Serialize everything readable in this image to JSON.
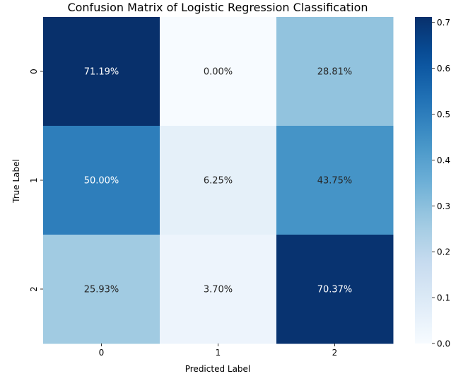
{
  "chart_data": {
    "type": "heatmap",
    "title": "Confusion Matrix of Logistic Regression Classification",
    "xlabel": "Predicted Label",
    "ylabel": "True Label",
    "x_categories": [
      "0",
      "1",
      "2"
    ],
    "y_categories": [
      "0",
      "1",
      "2"
    ],
    "values": [
      [
        0.7119,
        0.0,
        0.2881
      ],
      [
        0.5,
        0.0625,
        0.4375
      ],
      [
        0.2593,
        0.037,
        0.7037
      ]
    ],
    "annotations": [
      [
        "71.19%",
        "0.00%",
        "28.81%"
      ],
      [
        "50.00%",
        "6.25%",
        "43.75%"
      ],
      [
        "25.93%",
        "3.70%",
        "70.37%"
      ]
    ],
    "colormap": "Blues",
    "colorbar": {
      "range": [
        0.0,
        0.7119
      ],
      "ticks": [
        0.0,
        0.1,
        0.2,
        0.3,
        0.4,
        0.5,
        0.6,
        0.7
      ],
      "tick_labels": [
        "0.0",
        "0.1",
        "0.2",
        "0.3",
        "0.4",
        "0.5",
        "0.6",
        "0.7"
      ]
    },
    "grid": false
  }
}
